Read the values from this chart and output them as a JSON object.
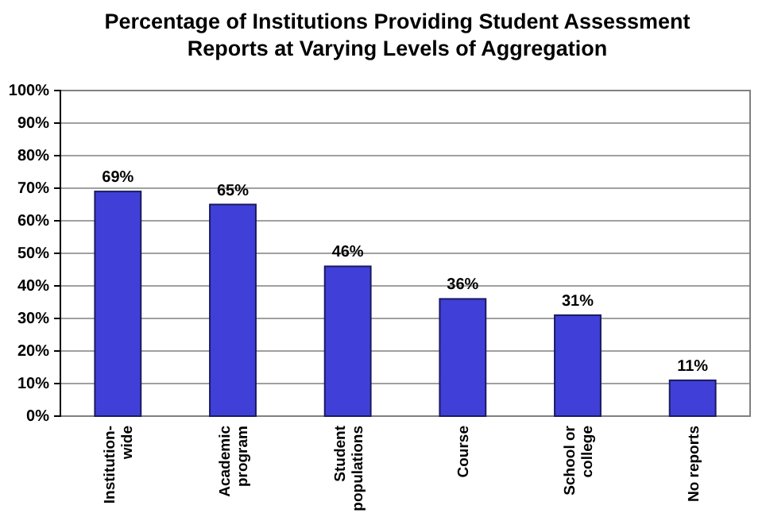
{
  "chart_data": {
    "type": "bar",
    "title": "Percentage of Institutions Providing Student Assessment\nReports at Varying Levels of Aggregation",
    "categories": [
      "Institution-\nwide",
      "Academic\nprogram",
      "Student\npopulations",
      "Course",
      "School or\ncollege",
      "No reports"
    ],
    "values": [
      69,
      65,
      46,
      36,
      31,
      11
    ],
    "color": "#4040d8",
    "value_labels": [
      "69%",
      "65%",
      "46%",
      "36%",
      "31%",
      "11%"
    ],
    "ylim": [
      0,
      100
    ],
    "yticks": [
      {
        "value": 0,
        "label": "0%"
      },
      {
        "value": 10,
        "label": "10%"
      },
      {
        "value": 20,
        "label": "20%"
      },
      {
        "value": 30,
        "label": "30%"
      },
      {
        "value": 40,
        "label": "40%"
      },
      {
        "value": 50,
        "label": "50%"
      },
      {
        "value": 60,
        "label": "60%"
      },
      {
        "value": 70,
        "label": "70%"
      },
      {
        "value": 80,
        "label": "80%"
      },
      {
        "value": 90,
        "label": "90%"
      },
      {
        "value": 100,
        "label": "100%"
      }
    ],
    "grid": "y"
  }
}
